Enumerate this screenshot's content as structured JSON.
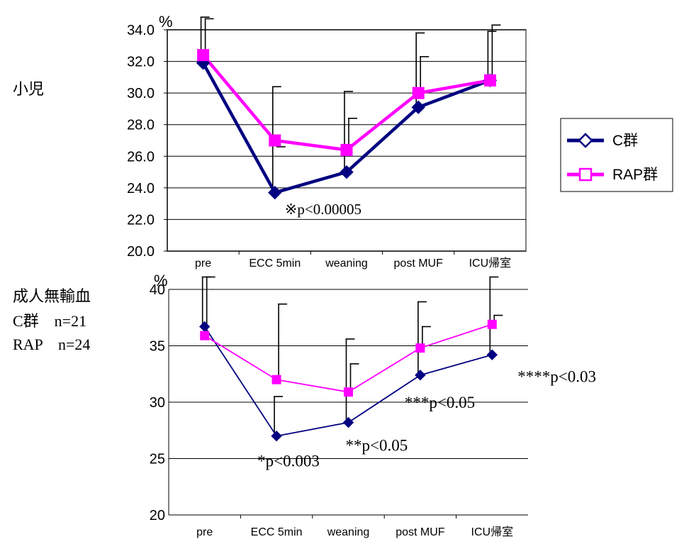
{
  "chart_data": [
    {
      "type": "line",
      "side_label": "小児",
      "unit_label": "%",
      "categories": [
        "pre",
        "ECC 5min",
        "weaning",
        "post MUF",
        "ICU帰室"
      ],
      "ylim": [
        20.0,
        34.0
      ],
      "yticks": [
        "20.0",
        "22.0",
        "24.0",
        "26.0",
        "28.0",
        "30.0",
        "32.0",
        "34.0"
      ],
      "grid": true,
      "legend_position": "right",
      "series": [
        {
          "name": "C群",
          "color": "#000080",
          "marker": "diamond",
          "values": [
            31.9,
            23.7,
            25.0,
            29.1,
            30.8
          ],
          "error_top": [
            34.8,
            30.4,
            30.1,
            33.8,
            33.9
          ]
        },
        {
          "name": "RAP群",
          "color": "#ff00ff",
          "marker": "square",
          "values": [
            32.4,
            27.0,
            26.4,
            30.0,
            30.8
          ],
          "error_top": [
            34.7,
            26.6,
            28.4,
            32.3,
            34.3
          ]
        }
      ],
      "annotations": [
        {
          "text": "※p<0.00005",
          "category": "ECC 5min",
          "y": 22.7
        }
      ]
    },
    {
      "type": "line",
      "side_label": "成人無輸血",
      "group_counts": [
        "C群　n=21",
        "RAP　n=24"
      ],
      "unit_label": "%",
      "categories": [
        "pre",
        "ECC 5min",
        "weaning",
        "post MUF",
        "ICU帰室"
      ],
      "ylim": [
        20,
        40
      ],
      "yticks": [
        "20",
        "25",
        "30",
        "35",
        "40"
      ],
      "grid": true,
      "series": [
        {
          "name": "C群",
          "color": "#000080",
          "marker": "diamond",
          "values": [
            36.7,
            27.0,
            28.2,
            32.4,
            34.2
          ],
          "error_top": [
            41.1,
            30.5,
            35.6,
            38.9,
            41.1
          ]
        },
        {
          "name": "RAP群",
          "color": "#ff00ff",
          "marker": "square",
          "values": [
            35.9,
            32.0,
            30.9,
            34.8,
            36.9
          ],
          "error_top": [
            41.1,
            38.7,
            33.4,
            36.7,
            37.7
          ]
        }
      ],
      "annotations": [
        {
          "text": "*p<0.003",
          "category": "ECC 5min",
          "y": 24.8
        },
        {
          "text": "**p<0.05",
          "category": "weaning",
          "y": 26.2
        },
        {
          "text": "***p<0.05",
          "category": "post MUF",
          "y": 30.0
        },
        {
          "text": "****p<0.03",
          "category": "ICU帰室",
          "y": 32.3
        }
      ]
    }
  ]
}
